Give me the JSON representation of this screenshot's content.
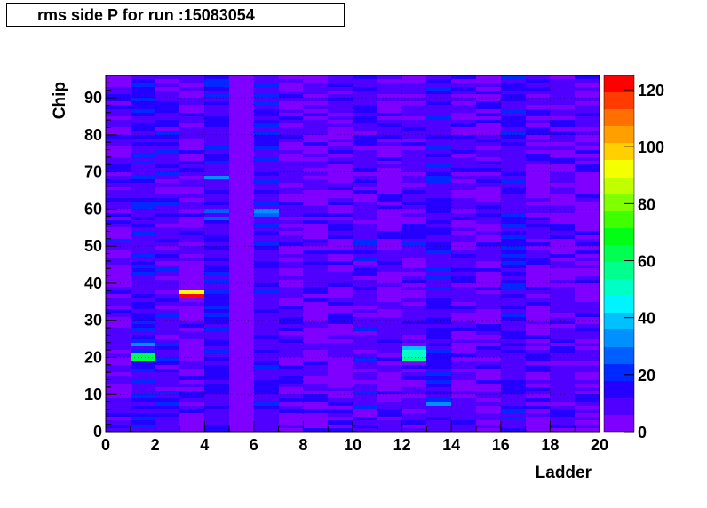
{
  "title": "rms side P for run :15083054",
  "chart_data": {
    "type": "heatmap",
    "title": "rms side P for run :15083054",
    "xlabel": "Ladder",
    "ylabel": "Chip",
    "xlim": [
      0,
      20
    ],
    "ylim": [
      0,
      96
    ],
    "zlim": [
      0,
      125
    ],
    "x_ticks": [
      "0",
      "2",
      "4",
      "6",
      "8",
      "10",
      "12",
      "14",
      "16",
      "18",
      "20"
    ],
    "y_ticks": [
      "0",
      "10",
      "20",
      "30",
      "40",
      "50",
      "60",
      "70",
      "80",
      "90"
    ],
    "z_ticks": [
      "0",
      "20",
      "40",
      "60",
      "80",
      "100",
      "120"
    ],
    "grid": true,
    "palette": [
      "#7f00ff",
      "#5000ff",
      "#2500ff",
      "#0028ff",
      "#0060ff",
      "#0090ff",
      "#00c0ff",
      "#00f4ff",
      "#00ffc4",
      "#00ff8c",
      "#00ff50",
      "#00ff14",
      "#40ff00",
      "#80ff00",
      "#c0ff00",
      "#f4ff00",
      "#ffcf00",
      "#ffa000",
      "#ff7000",
      "#ff3c00",
      "#ff0000"
    ],
    "background_level": 7,
    "ladder_levels": [
      6,
      9,
      7,
      5,
      11,
      3,
      8,
      6,
      5,
      4,
      7,
      5,
      6,
      9,
      6,
      5,
      8,
      4,
      6,
      5
    ],
    "hot_cells": [
      {
        "ladder": 1,
        "chips": [
          19,
          20
        ],
        "value": 60
      },
      {
        "ladder": 1,
        "chips": [
          21
        ],
        "value": 22
      },
      {
        "ladder": 1,
        "chips": [
          23
        ],
        "value": 32
      },
      {
        "ladder": 1,
        "chips": [
          68
        ],
        "value": 22
      },
      {
        "ladder": 3,
        "chips": [
          36
        ],
        "value": 122
      },
      {
        "ladder": 3,
        "chips": [
          37
        ],
        "value": 92
      },
      {
        "ladder": 4,
        "chips": [
          57
        ],
        "value": 24
      },
      {
        "ladder": 4,
        "chips": [
          59
        ],
        "value": 28
      },
      {
        "ladder": 4,
        "chips": [
          68
        ],
        "value": 30
      },
      {
        "ladder": 6,
        "chips": [
          58
        ],
        "value": 24
      },
      {
        "ladder": 6,
        "chips": [
          59
        ],
        "value": 34
      },
      {
        "ladder": 12,
        "chips": [
          19
        ],
        "value": 58
      },
      {
        "ladder": 12,
        "chips": [
          20,
          21
        ],
        "value": 48
      },
      {
        "ladder": 12,
        "chips": [
          22
        ],
        "value": 38
      },
      {
        "ladder": 12,
        "chips": [
          50
        ],
        "value": 22
      },
      {
        "ladder": 13,
        "chips": [
          7
        ],
        "value": 30
      }
    ]
  }
}
